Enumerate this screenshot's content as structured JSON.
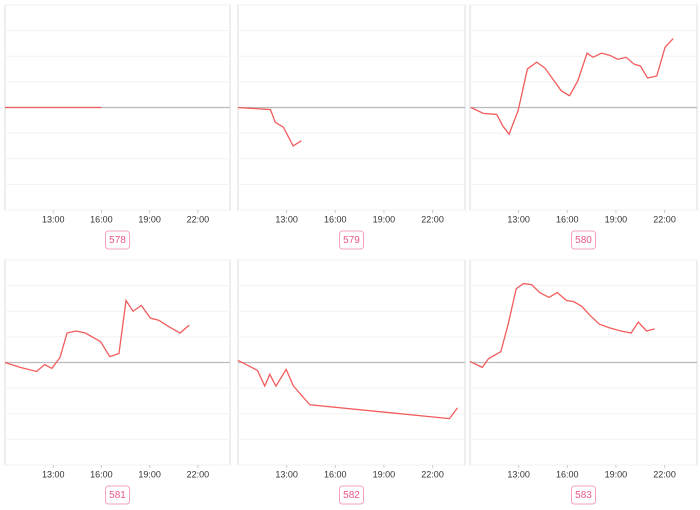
{
  "chart_data": [
    {
      "type": "line",
      "badge": "578",
      "xlim": [
        10,
        24
      ],
      "ylim": [
        -4,
        4
      ],
      "yticks": [
        -4,
        -3,
        -2,
        -1,
        0,
        1,
        2,
        3,
        4
      ],
      "grid": true,
      "xticks": [
        {
          "value": 13,
          "label": "13:00"
        },
        {
          "value": 16,
          "label": "16:00"
        },
        {
          "value": 19,
          "label": "19:00"
        },
        {
          "value": 22,
          "label": "22:00"
        }
      ],
      "x": [
        10,
        16
      ],
      "series": [
        {
          "color": "#f25c5c",
          "values": [
            0,
            0
          ]
        }
      ]
    },
    {
      "type": "line",
      "badge": "579",
      "xlim": [
        10,
        24
      ],
      "ylim": [
        -4,
        4
      ],
      "yticks": [
        -4,
        -3,
        -2,
        -1,
        0,
        1,
        2,
        3,
        4
      ],
      "grid": true,
      "xticks": [
        {
          "value": 13,
          "label": "13:00"
        },
        {
          "value": 16,
          "label": "16:00"
        },
        {
          "value": 19,
          "label": "19:00"
        },
        {
          "value": 22,
          "label": "22:00"
        }
      ],
      "x": [
        10,
        12.0,
        12.3,
        12.8,
        13.4,
        13.9
      ],
      "series": [
        {
          "color": "#f25c5c",
          "values": [
            0,
            -0.08,
            -0.58,
            -0.77,
            -1.5,
            -1.3
          ]
        }
      ]
    },
    {
      "type": "line",
      "badge": "580",
      "xlim": [
        10,
        24
      ],
      "ylim": [
        -4,
        4
      ],
      "yticks": [
        -4,
        -3,
        -2,
        -1,
        0,
        1,
        2,
        3,
        4
      ],
      "grid": true,
      "xticks": [
        {
          "value": 13,
          "label": "13:00"
        },
        {
          "value": 16,
          "label": "16:00"
        },
        {
          "value": 19,
          "label": "19:00"
        },
        {
          "value": 22,
          "label": "22:00"
        }
      ],
      "x": [
        10.06,
        10.82,
        11.65,
        12.03,
        12.41,
        12.97,
        13.54,
        14.11,
        14.62,
        15.63,
        16.14,
        16.65,
        17.22,
        17.59,
        18.1,
        18.61,
        19.11,
        19.62,
        20.13,
        20.51,
        20.95,
        21.52,
        22.03,
        22.53
      ],
      "series": [
        {
          "color": "#f25c5c",
          "values": [
            0,
            -0.23,
            -0.27,
            -0.73,
            -1.04,
            -0.12,
            1.5,
            1.77,
            1.54,
            0.65,
            0.46,
            1.04,
            2.12,
            1.96,
            2.12,
            2.04,
            1.88,
            1.96,
            1.69,
            1.62,
            1.15,
            1.23,
            2.35,
            2.69
          ]
        }
      ]
    },
    {
      "type": "line",
      "badge": "581",
      "xlim": [
        10,
        24
      ],
      "ylim": [
        -4,
        4
      ],
      "yticks": [
        -4,
        -3,
        -2,
        -1,
        0,
        1,
        2,
        3,
        4
      ],
      "grid": true,
      "xticks": [
        {
          "value": 13,
          "label": "13:00"
        },
        {
          "value": 16,
          "label": "16:00"
        },
        {
          "value": 19,
          "label": "19:00"
        },
        {
          "value": 22,
          "label": "22:00"
        }
      ],
      "x": [
        10,
        10.95,
        11.96,
        12.47,
        12.91,
        13.42,
        13.86,
        14.43,
        15.0,
        15.95,
        16.52,
        17.09,
        17.53,
        17.97,
        18.48,
        19.05,
        19.56,
        20.25,
        20.89,
        21.46
      ],
      "series": [
        {
          "color": "#f25c5c",
          "values": [
            0,
            -0.19,
            -0.35,
            -0.08,
            -0.23,
            0.19,
            1.15,
            1.23,
            1.15,
            0.81,
            0.23,
            0.35,
            2.42,
            2.0,
            2.23,
            1.73,
            1.65,
            1.38,
            1.15,
            1.46
          ]
        }
      ]
    },
    {
      "type": "line",
      "badge": "582",
      "xlim": [
        10,
        24
      ],
      "ylim": [
        -4,
        4
      ],
      "yticks": [
        -4,
        -3,
        -2,
        -1,
        0,
        1,
        2,
        3,
        4
      ],
      "grid": true,
      "xticks": [
        {
          "value": 13,
          "label": "13:00"
        },
        {
          "value": 16,
          "label": "16:00"
        },
        {
          "value": 19,
          "label": "19:00"
        },
        {
          "value": 22,
          "label": "22:00"
        }
      ],
      "x": [
        10,
        10.63,
        11.2,
        11.65,
        11.96,
        12.34,
        12.97,
        13.42,
        14.43,
        23.04,
        23.54
      ],
      "series": [
        {
          "color": "#f25c5c",
          "values": [
            0.08,
            -0.12,
            -0.31,
            -0.92,
            -0.46,
            -0.92,
            -0.27,
            -0.92,
            -1.65,
            -2.19,
            -1.77
          ]
        }
      ]
    },
    {
      "type": "line",
      "badge": "583",
      "xlim": [
        10,
        24
      ],
      "ylim": [
        -4,
        4
      ],
      "yticks": [
        -4,
        -3,
        -2,
        -1,
        0,
        1,
        2,
        3,
        4
      ],
      "grid": true,
      "xticks": [
        {
          "value": 13,
          "label": "13:00"
        },
        {
          "value": 16,
          "label": "16:00"
        },
        {
          "value": 19,
          "label": "19:00"
        },
        {
          "value": 22,
          "label": "22:00"
        }
      ],
      "x": [
        10,
        10.76,
        11.14,
        11.9,
        12.34,
        12.85,
        13.29,
        13.8,
        14.3,
        14.87,
        15.38,
        15.95,
        16.39,
        16.9,
        17.34,
        17.97,
        18.61,
        19.3,
        19.94,
        20.38,
        20.89,
        21.39
      ],
      "series": [
        {
          "color": "#f25c5c",
          "values": [
            0.04,
            -0.19,
            0.15,
            0.42,
            1.46,
            2.88,
            3.08,
            3.04,
            2.73,
            2.54,
            2.73,
            2.42,
            2.38,
            2.19,
            1.88,
            1.5,
            1.35,
            1.23,
            1.15,
            1.58,
            1.23,
            1.31
          ]
        }
      ]
    }
  ]
}
